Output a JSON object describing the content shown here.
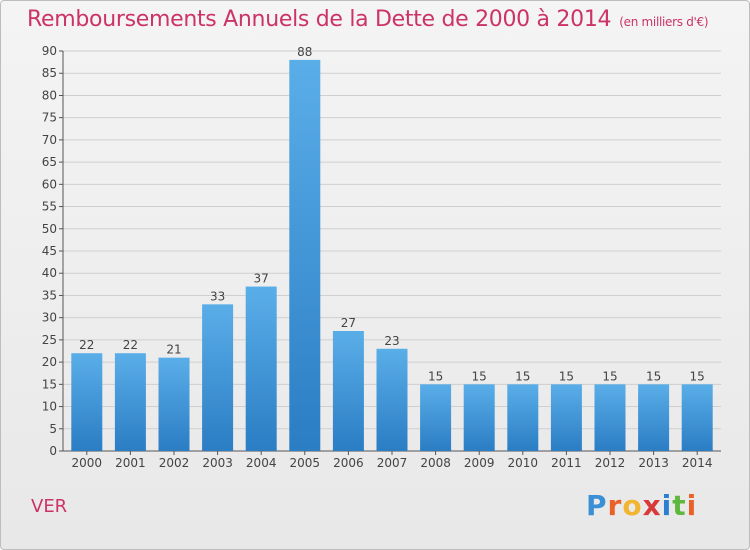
{
  "title": "Remboursements Annuels de la Dette de 2000 à 2014",
  "subtitle": "(en milliers d'€)",
  "commune": "VER",
  "brand": {
    "text": "Proxiti",
    "letters": [
      "P",
      "r",
      "o",
      "x",
      "i",
      "t",
      "i"
    ],
    "colors": [
      "#3a8fd6",
      "#e8622a",
      "#f2b531",
      "#d83a3a",
      "#2a7fd0",
      "#5fb73d",
      "#e8622a"
    ]
  },
  "colors": {
    "bar_light": "#5aaee8",
    "bar_dark": "#2b7dc4",
    "title": "#cc3366",
    "axis": "#555555",
    "grid": "#cfcfcf"
  },
  "chart_data": {
    "type": "bar",
    "title": "Remboursements Annuels de la Dette de 2000 à 2014",
    "subtitle": "(en milliers d'€)",
    "xlabel": "",
    "ylabel": "",
    "categories": [
      "2000",
      "2001",
      "2002",
      "2003",
      "2004",
      "2005",
      "2006",
      "2007",
      "2008",
      "2009",
      "2010",
      "2011",
      "2012",
      "2013",
      "2014"
    ],
    "values": [
      22,
      22,
      21,
      33,
      37,
      88,
      27,
      23,
      15,
      15,
      15,
      15,
      15,
      15,
      15
    ],
    "ylim": [
      0,
      90
    ],
    "yticks": [
      0,
      5,
      10,
      15,
      20,
      25,
      30,
      35,
      40,
      45,
      50,
      55,
      60,
      65,
      70,
      75,
      80,
      85,
      90
    ],
    "grid": true,
    "legend": "none"
  }
}
